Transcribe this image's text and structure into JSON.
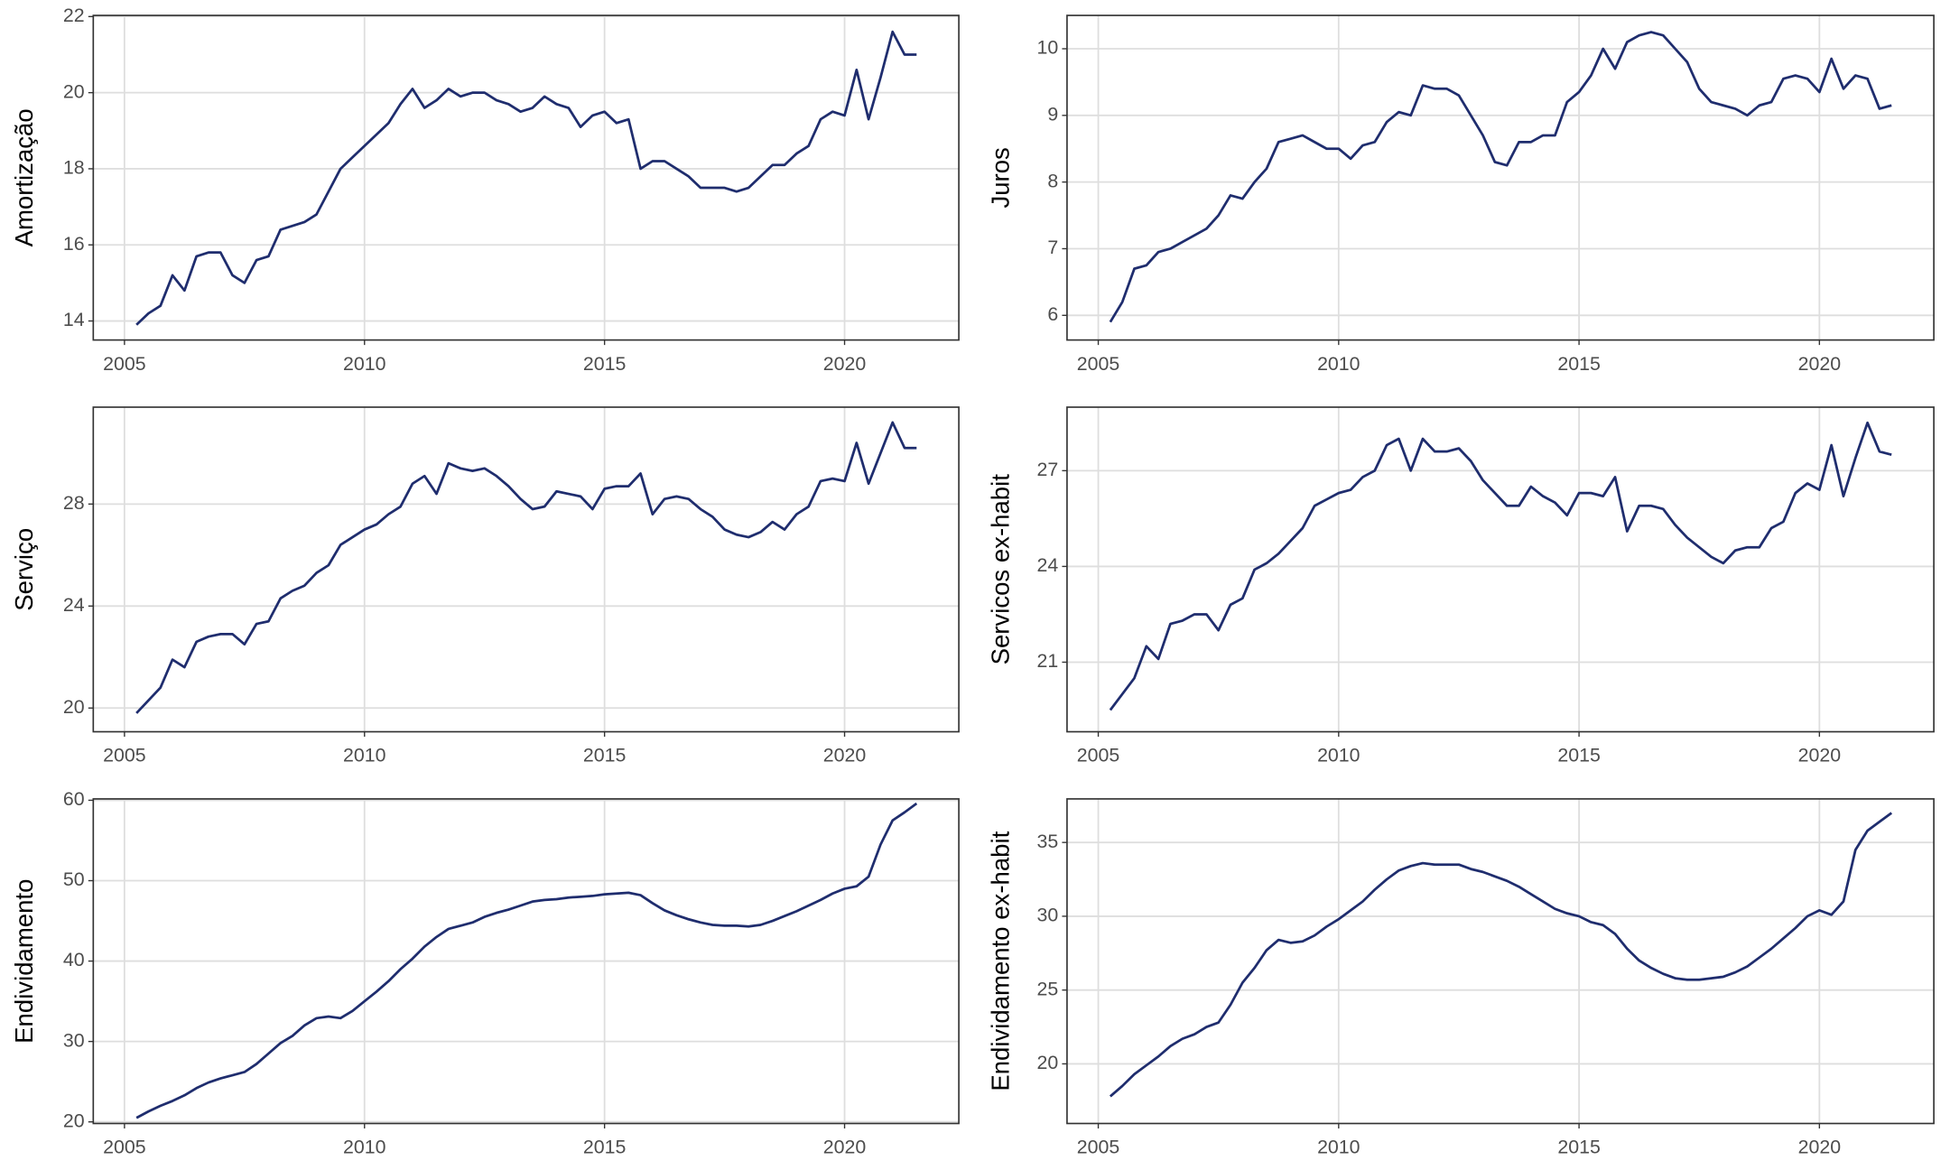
{
  "chart_data": [
    {
      "type": "line",
      "ylabel": "Amortização",
      "color": "#1f2d6e",
      "grid": true,
      "x": [
        2005.25,
        2005.5,
        2005.75,
        2006,
        2006.25,
        2006.5,
        2006.75,
        2007,
        2007.25,
        2007.5,
        2007.75,
        2008,
        2008.25,
        2008.5,
        2008.75,
        2009,
        2009.25,
        2009.5,
        2009.75,
        2010,
        2010.25,
        2010.5,
        2010.75,
        2011,
        2011.25,
        2011.5,
        2011.75,
        2012,
        2012.25,
        2012.5,
        2012.75,
        2013,
        2013.25,
        2013.5,
        2013.75,
        2014,
        2014.25,
        2014.5,
        2014.75,
        2015,
        2015.25,
        2015.5,
        2015.75,
        2016,
        2016.25,
        2016.5,
        2016.75,
        2017,
        2017.25,
        2017.5,
        2017.75,
        2018,
        2018.25,
        2018.5,
        2018.75,
        2019,
        2019.25,
        2019.5,
        2019.75,
        2020,
        2020.25,
        2020.5,
        2020.75,
        2021,
        2021.25,
        2021.5
      ],
      "values": [
        13.9,
        14.2,
        14.4,
        15.2,
        14.8,
        15.7,
        15.8,
        15.8,
        15.2,
        15.0,
        15.6,
        15.7,
        16.4,
        16.5,
        16.6,
        16.8,
        17.4,
        18.0,
        18.3,
        18.6,
        18.9,
        19.2,
        19.7,
        20.1,
        19.6,
        19.8,
        20.1,
        19.9,
        20.0,
        20.0,
        19.8,
        19.7,
        19.5,
        19.6,
        19.9,
        19.7,
        19.6,
        19.1,
        19.4,
        19.5,
        19.2,
        19.3,
        18.0,
        18.2,
        18.2,
        18.0,
        17.8,
        17.5,
        17.5,
        17.5,
        17.4,
        17.5,
        17.8,
        18.1,
        18.1,
        18.4,
        18.6,
        19.3,
        19.5,
        19.4,
        20.6,
        19.3,
        20.4,
        21.6,
        21.0,
        21.0
      ],
      "xlim": [
        2004.35,
        2022.38
      ],
      "xticks": [
        2005,
        2010,
        2015,
        2020
      ],
      "ylim": [
        13.5,
        22.03
      ],
      "yticks": [
        14,
        16,
        18,
        20,
        22
      ]
    },
    {
      "type": "line",
      "ylabel": "Juros",
      "color": "#1f2d6e",
      "grid": true,
      "x": [
        2005.25,
        2005.5,
        2005.75,
        2006,
        2006.25,
        2006.5,
        2006.75,
        2007,
        2007.25,
        2007.5,
        2007.75,
        2008,
        2008.25,
        2008.5,
        2008.75,
        2009,
        2009.25,
        2009.5,
        2009.75,
        2010,
        2010.25,
        2010.5,
        2010.75,
        2011,
        2011.25,
        2011.5,
        2011.75,
        2012,
        2012.25,
        2012.5,
        2012.75,
        2013,
        2013.25,
        2013.5,
        2013.75,
        2014,
        2014.25,
        2014.5,
        2014.75,
        2015,
        2015.25,
        2015.5,
        2015.75,
        2016,
        2016.25,
        2016.5,
        2016.75,
        2017,
        2017.25,
        2017.5,
        2017.75,
        2018,
        2018.25,
        2018.5,
        2018.75,
        2019,
        2019.25,
        2019.5,
        2019.75,
        2020,
        2020.25,
        2020.5,
        2020.75,
        2021,
        2021.25,
        2021.5
      ],
      "values": [
        5.9,
        6.2,
        6.7,
        6.75,
        6.95,
        7.0,
        7.1,
        7.2,
        7.3,
        7.5,
        7.8,
        7.75,
        8.0,
        8.2,
        8.6,
        8.65,
        8.7,
        8.6,
        8.5,
        8.5,
        8.35,
        8.55,
        8.6,
        8.9,
        9.05,
        9.0,
        9.45,
        9.4,
        9.4,
        9.3,
        9.0,
        8.7,
        8.3,
        8.25,
        8.6,
        8.6,
        8.7,
        8.7,
        9.2,
        9.35,
        9.6,
        10.0,
        9.7,
        10.1,
        10.2,
        10.25,
        10.2,
        10.0,
        9.8,
        9.4,
        9.2,
        9.15,
        9.1,
        9.0,
        9.15,
        9.2,
        9.55,
        9.6,
        9.55,
        9.35,
        9.85,
        9.4,
        9.6,
        9.55,
        9.1,
        9.15
      ],
      "xlim": [
        2004.35,
        2022.38
      ],
      "xticks": [
        2005,
        2010,
        2015,
        2020
      ],
      "ylim": [
        5.63,
        10.5
      ],
      "yticks": [
        6,
        7,
        8,
        9,
        10
      ]
    },
    {
      "type": "line",
      "ylabel": "Serviço",
      "color": "#1f2d6e",
      "grid": true,
      "x": [
        2005.25,
        2005.5,
        2005.75,
        2006,
        2006.25,
        2006.5,
        2006.75,
        2007,
        2007.25,
        2007.5,
        2007.75,
        2008,
        2008.25,
        2008.5,
        2008.75,
        2009,
        2009.25,
        2009.5,
        2009.75,
        2010,
        2010.25,
        2010.5,
        2010.75,
        2011,
        2011.25,
        2011.5,
        2011.75,
        2012,
        2012.25,
        2012.5,
        2012.75,
        2013,
        2013.25,
        2013.5,
        2013.75,
        2014,
        2014.25,
        2014.5,
        2014.75,
        2015,
        2015.25,
        2015.5,
        2015.75,
        2016,
        2016.25,
        2016.5,
        2016.75,
        2017,
        2017.25,
        2017.5,
        2017.75,
        2018,
        2018.25,
        2018.5,
        2018.75,
        2019,
        2019.25,
        2019.5,
        2019.75,
        2020,
        2020.25,
        2020.5,
        2020.75,
        2021,
        2021.25,
        2021.5
      ],
      "values": [
        19.8,
        20.3,
        20.8,
        21.9,
        21.6,
        22.6,
        22.8,
        22.9,
        22.9,
        22.5,
        23.3,
        23.4,
        24.3,
        24.6,
        24.8,
        25.3,
        25.6,
        26.4,
        26.7,
        27.0,
        27.2,
        27.6,
        27.9,
        28.8,
        29.1,
        28.4,
        29.6,
        29.4,
        29.3,
        29.4,
        29.1,
        28.7,
        28.2,
        27.8,
        27.9,
        28.5,
        28.4,
        28.3,
        27.8,
        28.6,
        28.7,
        28.7,
        29.2,
        27.6,
        28.2,
        28.3,
        28.2,
        27.8,
        27.5,
        27.0,
        26.8,
        26.7,
        26.9,
        27.3,
        27.0,
        27.6,
        27.9,
        28.9,
        29.0,
        28.9,
        30.4,
        28.8,
        30.0,
        31.2,
        30.2,
        30.2
      ],
      "xlim": [
        2004.35,
        2022.38
      ],
      "xticks": [
        2005,
        2010,
        2015,
        2020
      ],
      "ylim": [
        19.07,
        31.8
      ],
      "yticks": [
        20,
        24,
        28
      ]
    },
    {
      "type": "line",
      "ylabel": "Servicos ex-habit",
      "color": "#1f2d6e",
      "grid": true,
      "x": [
        2005.25,
        2005.5,
        2005.75,
        2006,
        2006.25,
        2006.5,
        2006.75,
        2007,
        2007.25,
        2007.5,
        2007.75,
        2008,
        2008.25,
        2008.5,
        2008.75,
        2009,
        2009.25,
        2009.5,
        2009.75,
        2010,
        2010.25,
        2010.5,
        2010.75,
        2011,
        2011.25,
        2011.5,
        2011.75,
        2012,
        2012.25,
        2012.5,
        2012.75,
        2013,
        2013.25,
        2013.5,
        2013.75,
        2014,
        2014.25,
        2014.5,
        2014.75,
        2015,
        2015.25,
        2015.5,
        2015.75,
        2016,
        2016.25,
        2016.5,
        2016.75,
        2017,
        2017.25,
        2017.5,
        2017.75,
        2018,
        2018.25,
        2018.5,
        2018.75,
        2019,
        2019.25,
        2019.5,
        2019.75,
        2020,
        2020.25,
        2020.5,
        2020.75,
        2021,
        2021.25,
        2021.5
      ],
      "values": [
        19.5,
        20.0,
        20.5,
        21.5,
        21.1,
        22.2,
        22.3,
        22.5,
        22.5,
        22.0,
        22.8,
        23.0,
        23.9,
        24.1,
        24.4,
        24.8,
        25.2,
        25.9,
        26.1,
        26.3,
        26.4,
        26.8,
        27.0,
        27.8,
        28.0,
        27.0,
        28.0,
        27.6,
        27.6,
        27.7,
        27.3,
        26.7,
        26.3,
        25.9,
        25.9,
        26.5,
        26.2,
        26.0,
        25.6,
        26.3,
        26.3,
        26.2,
        26.8,
        25.1,
        25.9,
        25.9,
        25.8,
        25.3,
        24.9,
        24.6,
        24.3,
        24.1,
        24.5,
        24.6,
        24.6,
        25.2,
        25.4,
        26.3,
        26.6,
        26.4,
        27.8,
        26.2,
        27.4,
        28.5,
        27.6,
        27.5
      ],
      "xlim": [
        2004.35,
        2022.38
      ],
      "xticks": [
        2005,
        2010,
        2015,
        2020
      ],
      "ylim": [
        18.82,
        28.99
      ],
      "yticks": [
        21,
        24,
        27
      ]
    },
    {
      "type": "line",
      "ylabel": "Endividamento",
      "color": "#1f2d6e",
      "grid": true,
      "x": [
        2005.25,
        2005.5,
        2005.75,
        2006,
        2006.25,
        2006.5,
        2006.75,
        2007,
        2007.25,
        2007.5,
        2007.75,
        2008,
        2008.25,
        2008.5,
        2008.75,
        2009,
        2009.25,
        2009.5,
        2009.75,
        2010,
        2010.25,
        2010.5,
        2010.75,
        2011,
        2011.25,
        2011.5,
        2011.75,
        2012,
        2012.25,
        2012.5,
        2012.75,
        2013,
        2013.25,
        2013.5,
        2013.75,
        2014,
        2014.25,
        2014.5,
        2014.75,
        2015,
        2015.25,
        2015.5,
        2015.75,
        2016,
        2016.25,
        2016.5,
        2016.75,
        2017,
        2017.25,
        2017.5,
        2017.75,
        2018,
        2018.25,
        2018.5,
        2018.75,
        2019,
        2019.25,
        2019.5,
        2019.75,
        2020,
        2020.25,
        2020.5,
        2020.75,
        2021,
        2021.25,
        2021.5
      ],
      "values": [
        20.5,
        21.3,
        22.0,
        22.6,
        23.3,
        24.2,
        24.9,
        25.4,
        25.8,
        26.2,
        27.2,
        28.5,
        29.8,
        30.7,
        32.0,
        32.9,
        33.1,
        32.9,
        33.8,
        35.0,
        36.2,
        37.5,
        39.0,
        40.3,
        41.8,
        43.0,
        44.0,
        44.4,
        44.8,
        45.5,
        46.0,
        46.4,
        46.9,
        47.4,
        47.6,
        47.7,
        47.9,
        48.0,
        48.1,
        48.3,
        48.4,
        48.5,
        48.2,
        47.2,
        46.3,
        45.7,
        45.2,
        44.8,
        44.5,
        44.4,
        44.4,
        44.3,
        44.5,
        45.0,
        45.6,
        46.2,
        46.9,
        47.6,
        48.4,
        49.0,
        49.3,
        50.5,
        54.5,
        57.5,
        58.5,
        59.6
      ],
      "xlim": [
        2004.35,
        2022.38
      ],
      "xticks": [
        2005,
        2010,
        2015,
        2020
      ],
      "ylim": [
        19.8,
        60.17
      ],
      "yticks": [
        20,
        30,
        40,
        50,
        60
      ]
    },
    {
      "type": "line",
      "ylabel": "Endividamento ex-habit",
      "color": "#1f2d6e",
      "grid": true,
      "x": [
        2005.25,
        2005.5,
        2005.75,
        2006,
        2006.25,
        2006.5,
        2006.75,
        2007,
        2007.25,
        2007.5,
        2007.75,
        2008,
        2008.25,
        2008.5,
        2008.75,
        2009,
        2009.25,
        2009.5,
        2009.75,
        2010,
        2010.25,
        2010.5,
        2010.75,
        2011,
        2011.25,
        2011.5,
        2011.75,
        2012,
        2012.25,
        2012.5,
        2012.75,
        2013,
        2013.25,
        2013.5,
        2013.75,
        2014,
        2014.25,
        2014.5,
        2014.75,
        2015,
        2015.25,
        2015.5,
        2015.75,
        2016,
        2016.25,
        2016.5,
        2016.75,
        2017,
        2017.25,
        2017.5,
        2017.75,
        2018,
        2018.25,
        2018.5,
        2018.75,
        2019,
        2019.25,
        2019.5,
        2019.75,
        2020,
        2020.25,
        2020.5,
        2020.75,
        2021,
        2021.25,
        2021.5
      ],
      "values": [
        17.8,
        18.5,
        19.3,
        19.9,
        20.5,
        21.2,
        21.7,
        22.0,
        22.5,
        22.8,
        24.0,
        25.5,
        26.5,
        27.7,
        28.4,
        28.2,
        28.3,
        28.7,
        29.3,
        29.8,
        30.4,
        31.0,
        31.8,
        32.5,
        33.1,
        33.4,
        33.6,
        33.5,
        33.5,
        33.5,
        33.2,
        33.0,
        32.7,
        32.4,
        32.0,
        31.5,
        31.0,
        30.5,
        30.2,
        30.0,
        29.6,
        29.4,
        28.8,
        27.8,
        27.0,
        26.5,
        26.1,
        25.8,
        25.7,
        25.7,
        25.8,
        25.9,
        26.2,
        26.6,
        27.2,
        27.8,
        28.5,
        29.2,
        30.0,
        30.4,
        30.1,
        31.0,
        34.5,
        35.8,
        36.4,
        37.0
      ],
      "xlim": [
        2004.35,
        2022.38
      ],
      "xticks": [
        2005,
        2010,
        2015,
        2020
      ],
      "ylim": [
        15.96,
        37.95
      ],
      "yticks": [
        20,
        25,
        30,
        35
      ]
    }
  ]
}
